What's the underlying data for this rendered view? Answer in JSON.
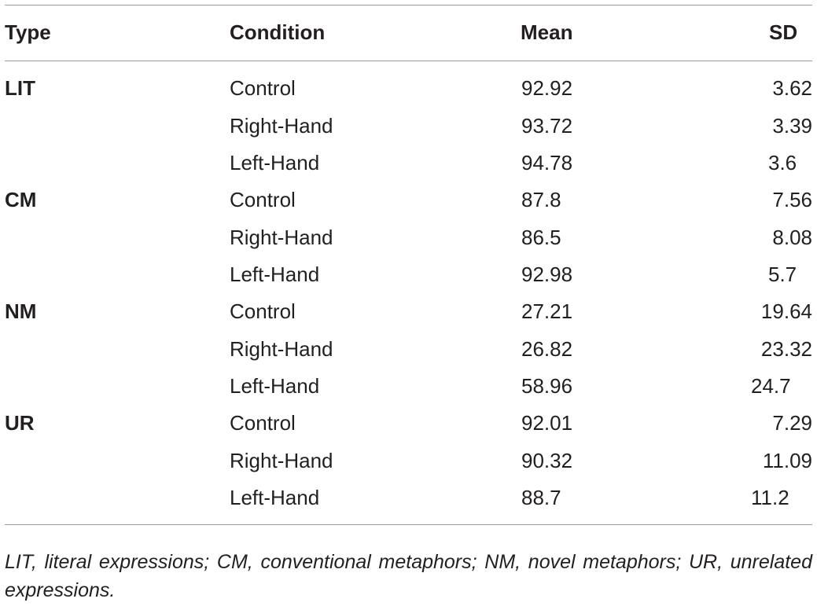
{
  "table": {
    "headers": {
      "type": "Type",
      "condition": "Condition",
      "mean": "Mean",
      "sd": "SD"
    },
    "rows": [
      {
        "type": "LIT",
        "condition": "Control",
        "mean": "92.92",
        "sd": "3.62"
      },
      {
        "type": "",
        "condition": "Right-Hand",
        "mean": "93.72",
        "sd": "3.39"
      },
      {
        "type": "",
        "condition": "Left-Hand",
        "mean": "94.78",
        "sd": "3.6"
      },
      {
        "type": "CM",
        "condition": "Control",
        "mean": "87.8",
        "sd": "7.56"
      },
      {
        "type": "",
        "condition": "Right-Hand",
        "mean": "86.5",
        "sd": "8.08"
      },
      {
        "type": "",
        "condition": "Left-Hand",
        "mean": "92.98",
        "sd": "5.7"
      },
      {
        "type": "NM",
        "condition": "Control",
        "mean": "27.21",
        "sd": "19.64"
      },
      {
        "type": "",
        "condition": "Right-Hand",
        "mean": "26.82",
        "sd": "23.32"
      },
      {
        "type": "",
        "condition": "Left-Hand",
        "mean": "58.96",
        "sd": "24.7"
      },
      {
        "type": "UR",
        "condition": "Control",
        "mean": "92.01",
        "sd": "7.29"
      },
      {
        "type": "",
        "condition": "Right-Hand",
        "mean": "90.32",
        "sd": "11.09"
      },
      {
        "type": "",
        "condition": "Left-Hand",
        "mean": "88.7",
        "sd": "11.2"
      }
    ]
  },
  "footnote": "LIT, literal expressions; CM, conventional metaphors; NM, novel metaphors; UR, unrelated expressions."
}
